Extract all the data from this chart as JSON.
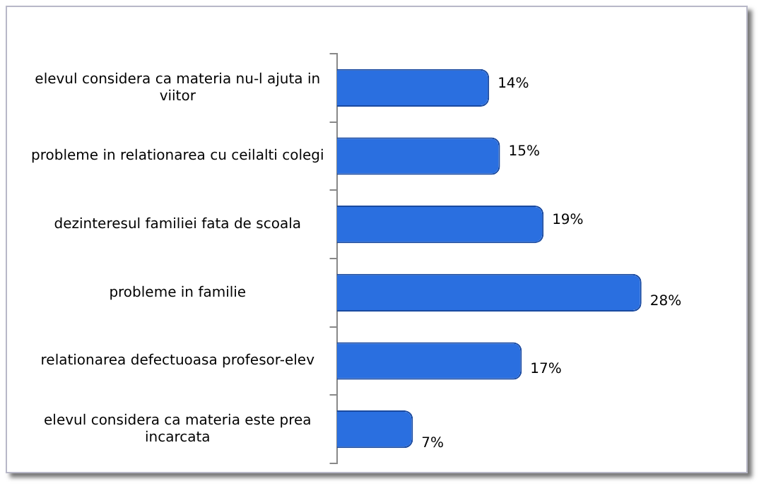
{
  "chart_data": {
    "type": "bar",
    "orientation": "horizontal",
    "categories": [
      "elevul considera ca materia nu-l ajuta in viitor",
      "probleme in relationarea cu ceilalti colegi",
      "dezinteresul familiei fata de scoala",
      "probleme in familie",
      "relationarea defectuoasa profesor-elev",
      "elevul considera ca materia este prea incarcata"
    ],
    "values": [
      14,
      15,
      19,
      28,
      17,
      7
    ],
    "value_labels": [
      "14%",
      "15%",
      "19%",
      "28%",
      "17%",
      "7%"
    ],
    "color": "#2a6fe0",
    "grid": false,
    "legend": false
  }
}
